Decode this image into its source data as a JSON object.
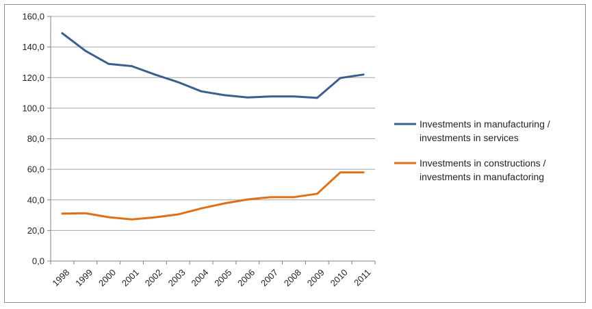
{
  "chart_data": {
    "type": "line",
    "title": "",
    "xlabel": "",
    "ylabel": "",
    "categories": [
      "1998",
      "1999",
      "2000",
      "2001",
      "2002",
      "2003",
      "2004",
      "2005",
      "2006",
      "2007",
      "2008",
      "2009",
      "2010",
      "2011"
    ],
    "ylim": [
      0,
      160
    ],
    "yticks": [
      0,
      20,
      40,
      60,
      80,
      100,
      120,
      140,
      160
    ],
    "ytick_labels": [
      "0,0",
      "20,0",
      "40,0",
      "60,0",
      "80,0",
      "100,0",
      "120,0",
      "140,0",
      "160,0"
    ],
    "grid": true,
    "legend_position": "right",
    "series": [
      {
        "name": "Investments in manufacturing / investments in services",
        "legend_lines": [
          "Investments in manufacturing /",
          "investments in services"
        ],
        "color": "#3a5f8f",
        "values": [
          149.0,
          137.5,
          129.0,
          127.5,
          122.0,
          117.0,
          111.0,
          108.5,
          107.0,
          107.7,
          107.7,
          106.7,
          119.7,
          122.0
        ]
      },
      {
        "name": "Investments in constructions / investments in manufactoring",
        "legend_lines": [
          "Investments in constructions /",
          "investments in manufactoring"
        ],
        "color": "#e07016",
        "values": [
          31.0,
          31.3,
          28.7,
          27.2,
          28.6,
          30.5,
          34.4,
          37.7,
          40.3,
          41.8,
          41.8,
          44.0,
          58.0,
          58.0
        ]
      }
    ]
  }
}
